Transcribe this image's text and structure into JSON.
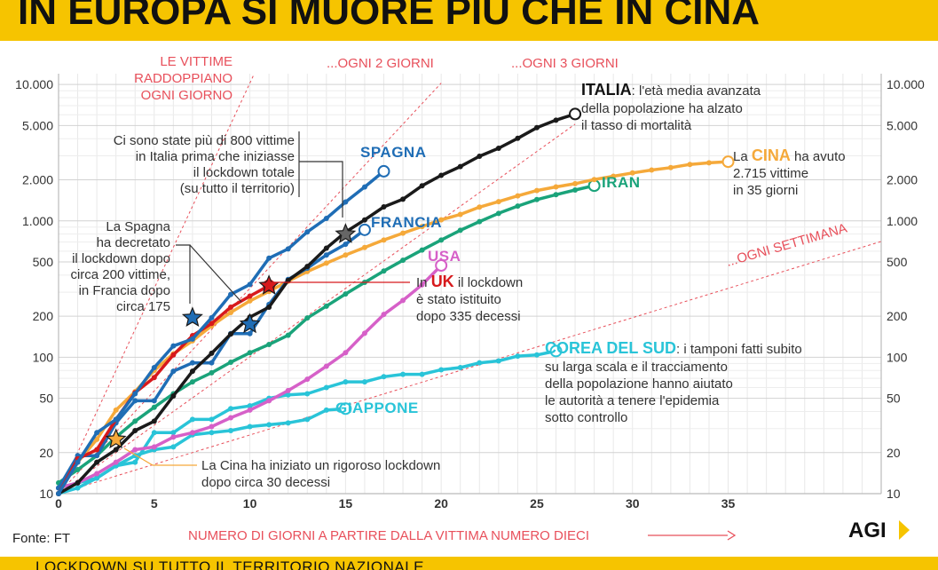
{
  "header": {
    "title": "IN EUROPA SI MUORE PIÙ CHE IN CINA"
  },
  "footer": {
    "source": "Fonte: FT",
    "brand": "AGI",
    "legend_text": "LOCKDOWN SU TUTTO IL TERRITORIO NAZIONALE"
  },
  "colors": {
    "accent": "#f6c400",
    "italia": "#1a1a1a",
    "spagna": "#1f6db5",
    "francia": "#1f6db5",
    "uk": "#d7191c",
    "cina": "#f5a93a",
    "iran": "#1aa37a",
    "usa": "#d660c8",
    "corea": "#29c4d8",
    "giappone": "#29c4d8",
    "rate_lines": "#e8505b"
  },
  "chart_data": {
    "type": "line",
    "y_scale": "log",
    "xlabel": "NUMERO DI GIORNI A PARTIRE DALLA VITTIMA NUMERO DIECI",
    "xlim": [
      0,
      43
    ],
    "ylim": [
      10,
      12000
    ],
    "x_ticks": [
      0,
      5,
      10,
      15,
      20,
      25,
      30,
      35
    ],
    "y_ticks": [
      10,
      20,
      50,
      100,
      200,
      500,
      1000,
      2000,
      5000,
      10000
    ],
    "y_tick_labels": [
      "10",
      "20",
      "50",
      "100",
      "200",
      "500",
      "1.000",
      "2.000",
      "5.000",
      "10.000"
    ],
    "series": [
      {
        "name": "ITALIA",
        "color_key": "italia",
        "values": [
          10,
          12,
          17,
          21,
          29,
          34,
          52,
          79,
          107,
          148,
          197,
          233,
          366,
          463,
          631,
          827,
          1016,
          1266,
          1441,
          1809,
          2158,
          2503,
          2978,
          3405,
          4032,
          4825,
          5476,
          6077
        ]
      },
      {
        "name": "SPAGNA",
        "color_key": "spagna",
        "values": [
          10,
          17,
          28,
          35,
          54,
          84,
          121,
          136,
          195,
          289,
          342,
          533,
          623,
          830,
          1043,
          1375,
          1772,
          2311
        ]
      },
      {
        "name": "FRANCIA",
        "color_key": "francia",
        "values": [
          11,
          19,
          19,
          33,
          48,
          48,
          79,
          91,
          91,
          149,
          149,
          244,
          372,
          450,
          562,
          674,
          860
        ]
      },
      {
        "name": "UK",
        "color_key": "uk",
        "values": [
          10,
          18,
          21,
          35,
          55,
          71,
          104,
          144,
          177,
          233,
          281,
          335
        ]
      },
      {
        "name": "CINA",
        "color_key": "cina",
        "values": [
          10,
          17,
          25,
          41,
          56,
          80,
          106,
          132,
          170,
          213,
          259,
          304,
          361,
          425,
          490,
          562,
          638,
          724,
          813,
          910,
          1018,
          1115,
          1261,
          1383,
          1526,
          1669,
          1775,
          1873,
          2009,
          2126,
          2247,
          2360,
          2459,
          2592,
          2665,
          2715
        ]
      },
      {
        "name": "IRAN",
        "color_key": "iran",
        "values": [
          12,
          15,
          19,
          26,
          34,
          43,
          54,
          66,
          77,
          92,
          108,
          124,
          145,
          194,
          237,
          291,
          354,
          429,
          514,
          611,
          724,
          853,
          988,
          1135,
          1284,
          1433,
          1556,
          1685,
          1812
        ]
      },
      {
        "name": "USA",
        "color_key": "usa",
        "values": [
          11,
          12,
          14,
          17,
          21,
          22,
          26,
          28,
          31,
          36,
          41,
          48,
          57,
          69,
          86,
          108,
          150,
          206,
          261,
          340,
          471
        ]
      },
      {
        "name": "COREA DEL SUD",
        "color_key": "corea",
        "values": [
          11,
          12,
          13,
          16,
          17,
          28,
          28,
          35,
          35,
          42,
          44,
          50,
          53,
          54,
          60,
          66,
          66,
          72,
          75,
          75,
          81,
          84,
          91,
          94,
          102,
          104,
          111
        ]
      },
      {
        "name": "GIAPPONE",
        "color_key": "giappone",
        "values": [
          10,
          11,
          13,
          16,
          19,
          21,
          22,
          27,
          28,
          29,
          31,
          32,
          33,
          35,
          41,
          42
        ]
      }
    ],
    "lockdown_markers": [
      {
        "series": "CINA",
        "x": 3,
        "y": 25,
        "color_key": "cina"
      },
      {
        "series": "SPAGNA",
        "x": 7,
        "y": 195,
        "color_key": "spagna"
      },
      {
        "series": "FRANCIA",
        "x": 10,
        "y": 175,
        "color_key": "francia"
      },
      {
        "series": "UK",
        "x": 11,
        "y": 335,
        "color_key": "uk"
      },
      {
        "series": "ITALIA",
        "x": 15,
        "y": 800,
        "color_key": "italia"
      }
    ],
    "reference_lines": [
      {
        "label": "LE VITTIME RADDOPPIANO OGNI GIORNO",
        "lines": [
          "LE VITTIME",
          "RADDOPPIANO",
          "OGNI GIORNO"
        ],
        "doubling_days": 1
      },
      {
        "label": "...OGNI 2 GIORNI",
        "doubling_days": 2
      },
      {
        "label": "...OGNI 3 GIORNI",
        "doubling_days": 3
      },
      {
        "label": "...OGNI SETTIMANA",
        "doubling_days": 7
      }
    ],
    "annotations": {
      "italia": {
        "name": "ITALIA",
        "text": ": l'età media avanzata",
        "lines": [
          "della popolazione ha alzato",
          "il tasso di mortalità"
        ]
      },
      "cina": {
        "prefix": "La ",
        "name": "CINA",
        "text": " ha avuto",
        "lines": [
          "2.715 vittime",
          "in 35 giorni"
        ]
      },
      "uk": {
        "prefix": "In ",
        "name": "UK",
        "text": " il lockdown",
        "lines": [
          "è stato istituito",
          "dopo 335 decessi"
        ]
      },
      "corea": {
        "name": "COREA DEL SUD",
        "text": ": i tamponi fatti subito",
        "lines": [
          "su larga scala e il tracciamento",
          "della popolazione hanno aiutato",
          "le autorità a tenere l'epidemia",
          "sotto controllo"
        ]
      },
      "italia_lockdown": {
        "lines": [
          "Ci sono state più di 800 vittime",
          "in Italia prima che iniziasse",
          "il lockdown totale",
          "(su tutto il territorio)"
        ]
      },
      "spagna_francia_lockdown": {
        "lines": [
          "La Spagna",
          "ha decretato",
          "il lockdown dopo",
          "circa 200 vittime,",
          "in Francia dopo",
          "circa 175"
        ]
      },
      "cina_lockdown": {
        "lines": [
          "La Cina ha iniziato un rigoroso lockdown",
          "dopo circa 30 decessi"
        ]
      }
    }
  }
}
